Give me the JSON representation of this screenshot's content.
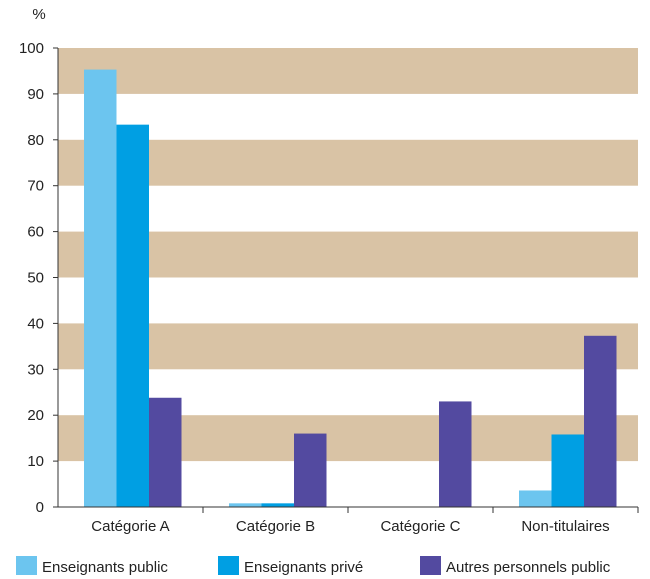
{
  "chart_data": {
    "type": "bar",
    "unit_label": "%",
    "categories": [
      "Catégorie A",
      "Catégorie B",
      "Catégorie C",
      "Non-titulaires"
    ],
    "series": [
      {
        "name": "Enseignants public",
        "color": "#6cc5ef",
        "values": [
          95.3,
          0.8,
          0,
          3.6
        ]
      },
      {
        "name": "Enseignants privé",
        "color": "#009fe3",
        "values": [
          83.3,
          0.8,
          0,
          15.8
        ]
      },
      {
        "name": "Autres personnels public",
        "color": "#534aa0",
        "values": [
          23.8,
          16.0,
          23.0,
          37.3
        ]
      }
    ],
    "ylim": [
      0,
      100
    ],
    "yticks": [
      0,
      10,
      20,
      30,
      40,
      50,
      60,
      70,
      80,
      90,
      100
    ],
    "band_color": "#d9c3a5",
    "grid": "alternating horizontal bands",
    "legend_position": "bottom"
  }
}
